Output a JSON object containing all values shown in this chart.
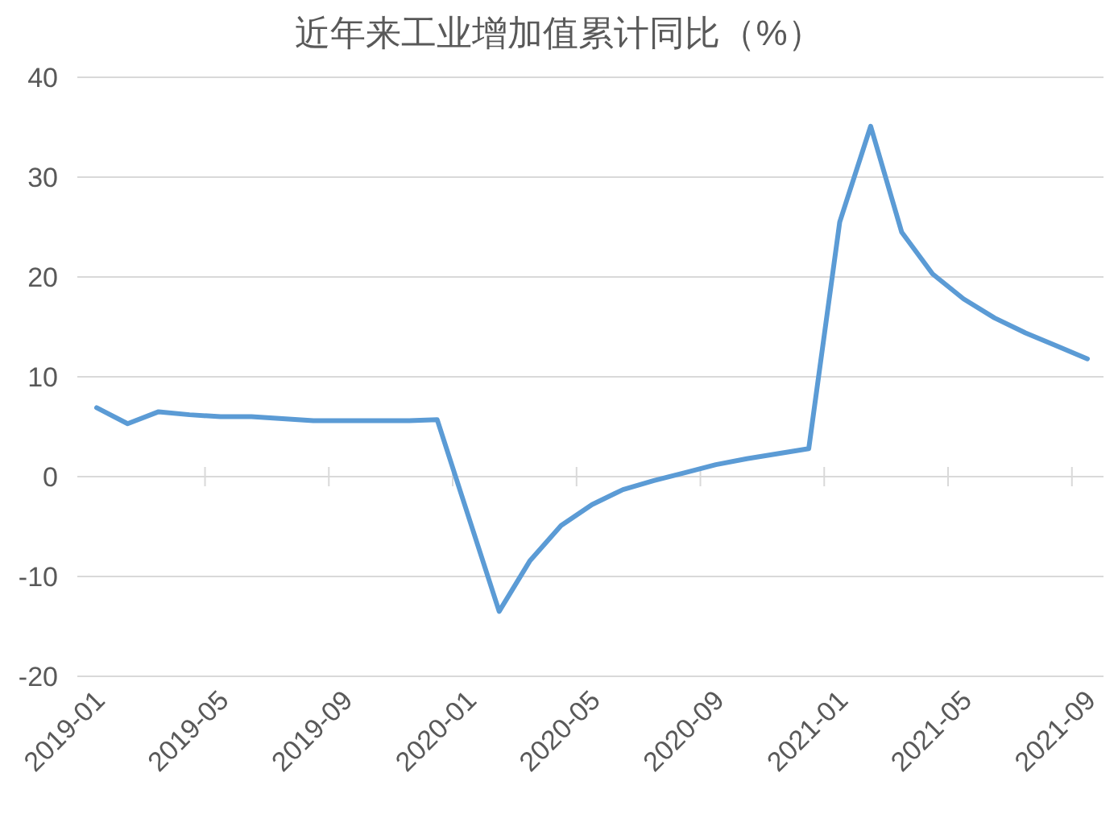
{
  "chart_data": {
    "type": "line",
    "title": "近年来工业增加值累计同比（%）",
    "categories": [
      "2019-01",
      null,
      null,
      null,
      "2019-05",
      null,
      null,
      null,
      "2019-09",
      null,
      null,
      null,
      "2020-01",
      null,
      null,
      null,
      "2020-05",
      null,
      null,
      null,
      "2020-09",
      null,
      null,
      null,
      "2021-01",
      null,
      null,
      null,
      "2021-05",
      null,
      null,
      null,
      "2021-09"
    ],
    "series": [
      {
        "color": "#5b9bd5",
        "values": [
          6.9,
          5.3,
          6.5,
          6.2,
          6.0,
          6.0,
          5.8,
          5.6,
          5.6,
          5.6,
          5.6,
          5.7,
          -3.9,
          -13.5,
          -8.4,
          -4.9,
          -2.8,
          -1.3,
          -0.4,
          0.4,
          1.2,
          1.8,
          2.3,
          2.8,
          25.5,
          35.1,
          24.5,
          20.3,
          17.8,
          15.9,
          14.4,
          13.1,
          11.8
        ]
      }
    ],
    "ylim": [
      -20,
      40
    ],
    "yticks": [
      -20,
      -10,
      0,
      10,
      20,
      30,
      40
    ],
    "grid": "y"
  }
}
